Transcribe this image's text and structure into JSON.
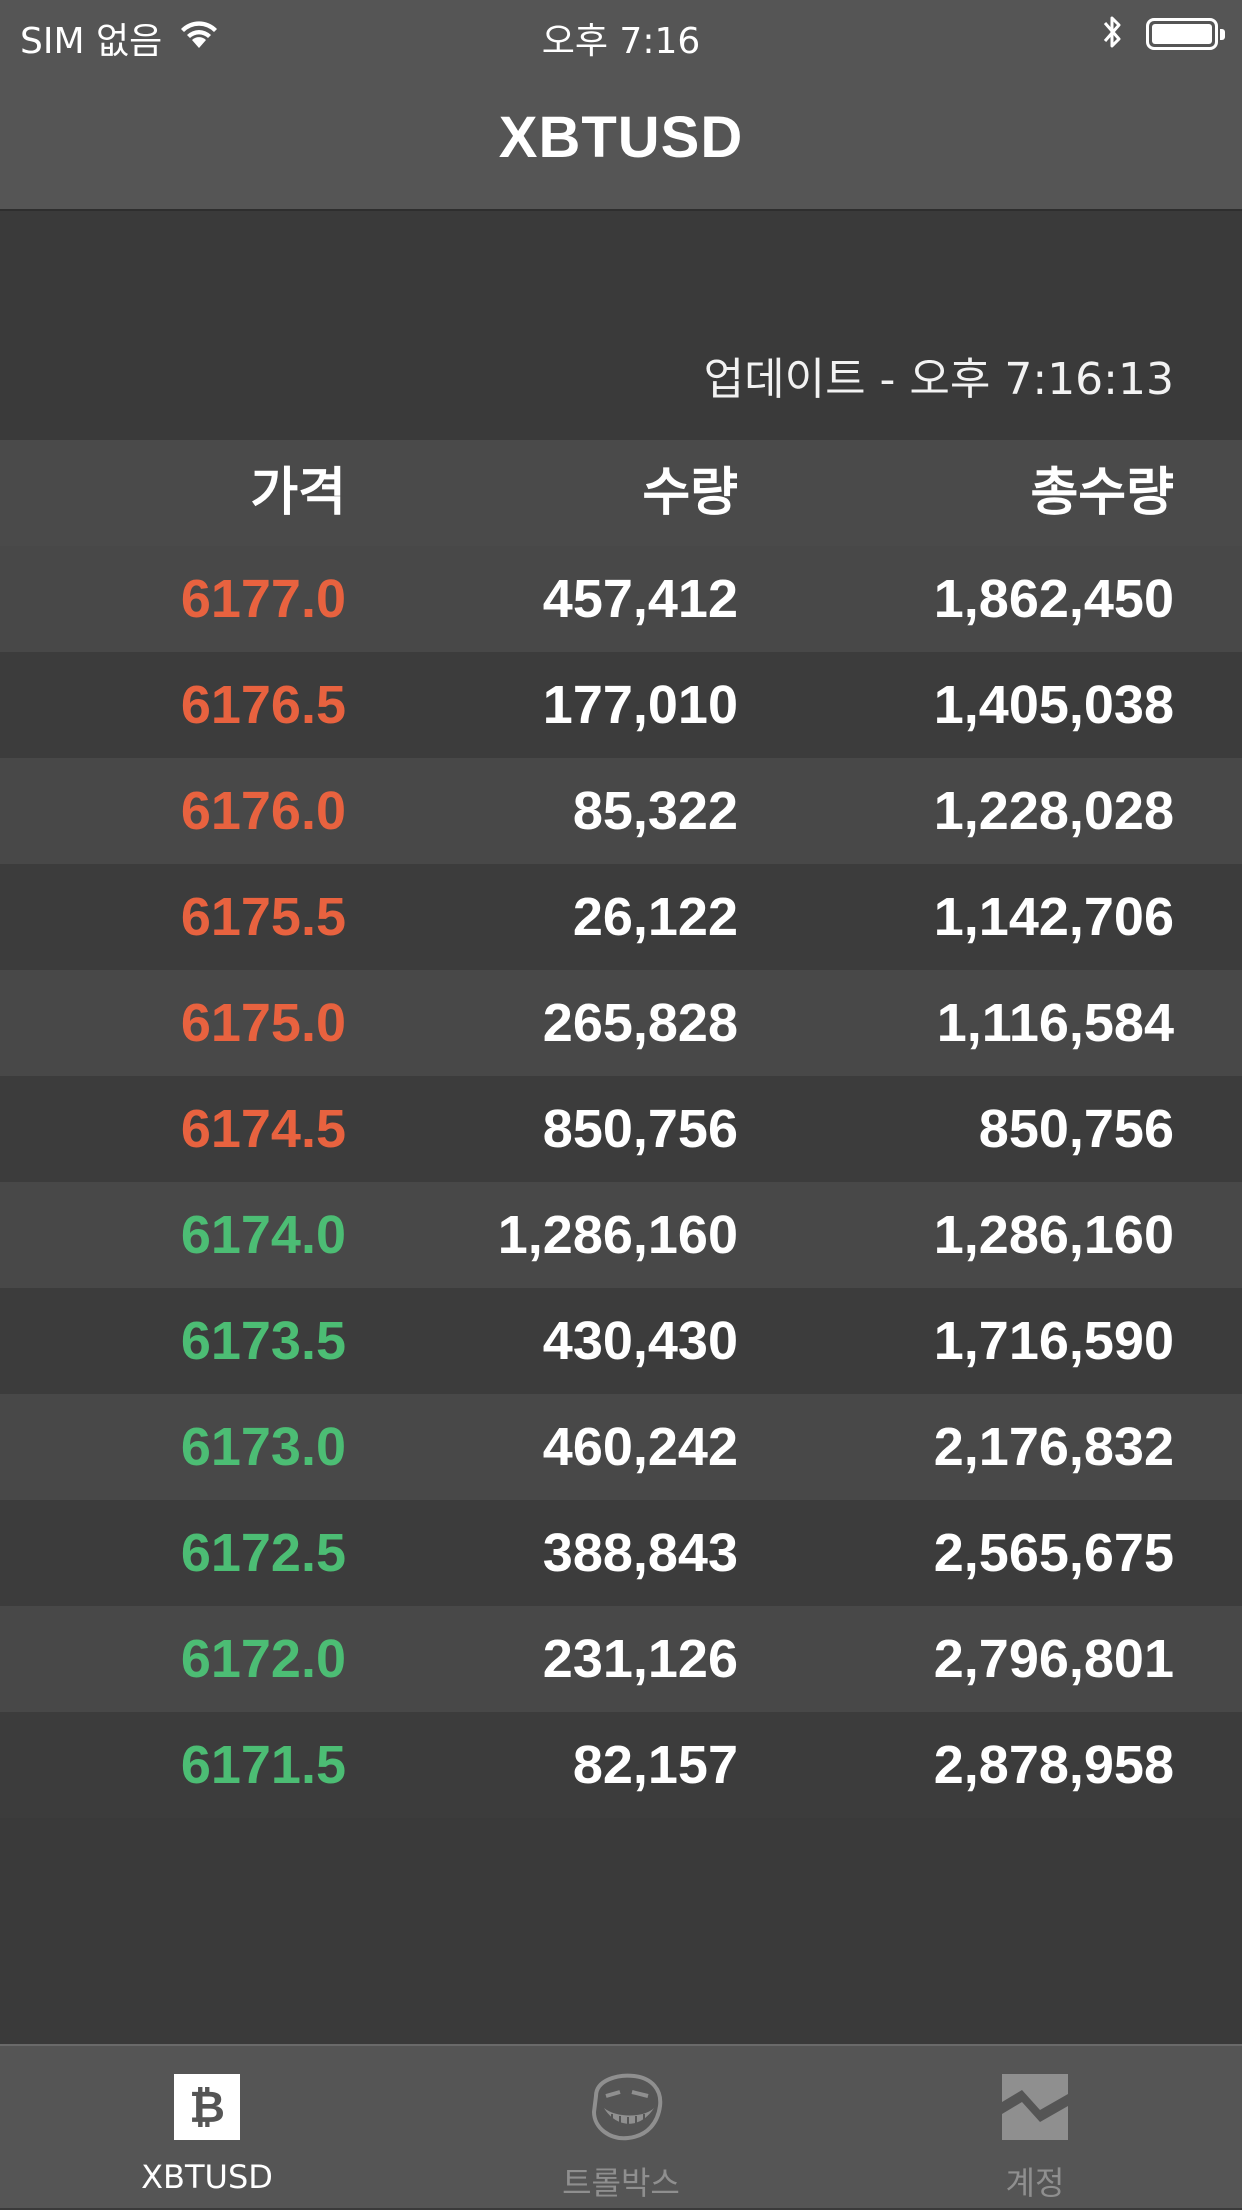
{
  "status_bar": {
    "carrier": "SIM 없음",
    "time": "오후 7:16"
  },
  "nav": {
    "title": "XBTUSD"
  },
  "updated_text": "업데이트 - 오후 7:16:13",
  "table": {
    "headers": {
      "price": "가격",
      "qty": "수량",
      "total": "총수량"
    },
    "rows": [
      {
        "price": "6177.0",
        "qty": "457,412",
        "total": "1,862,450",
        "side": "ask"
      },
      {
        "price": "6176.5",
        "qty": "177,010",
        "total": "1,405,038",
        "side": "ask"
      },
      {
        "price": "6176.0",
        "qty": "85,322",
        "total": "1,228,028",
        "side": "ask"
      },
      {
        "price": "6175.5",
        "qty": "26,122",
        "total": "1,142,706",
        "side": "ask"
      },
      {
        "price": "6175.0",
        "qty": "265,828",
        "total": "1,116,584",
        "side": "ask"
      },
      {
        "price": "6174.5",
        "qty": "850,756",
        "total": "850,756",
        "side": "ask"
      },
      {
        "price": "6174.0",
        "qty": "1,286,160",
        "total": "1,286,160",
        "side": "bid"
      },
      {
        "price": "6173.5",
        "qty": "430,430",
        "total": "1,716,590",
        "side": "bid"
      },
      {
        "price": "6173.0",
        "qty": "460,242",
        "total": "2,176,832",
        "side": "bid"
      },
      {
        "price": "6172.5",
        "qty": "388,843",
        "total": "2,565,675",
        "side": "bid"
      },
      {
        "price": "6172.0",
        "qty": "231,126",
        "total": "2,796,801",
        "side": "bid"
      },
      {
        "price": "6171.5",
        "qty": "82,157",
        "total": "2,878,958",
        "side": "bid"
      }
    ]
  },
  "tabs": [
    {
      "label": "XBTUSD",
      "icon": "bitcoin-icon",
      "active": true
    },
    {
      "label": "트롤박스",
      "icon": "trollface-icon",
      "active": false
    },
    {
      "label": "계정",
      "icon": "account-chart-icon",
      "active": false
    }
  ],
  "colors": {
    "ask": "#e8623f",
    "bid": "#4cbd74",
    "background": "#3a3a3a",
    "bar": "#555555"
  }
}
